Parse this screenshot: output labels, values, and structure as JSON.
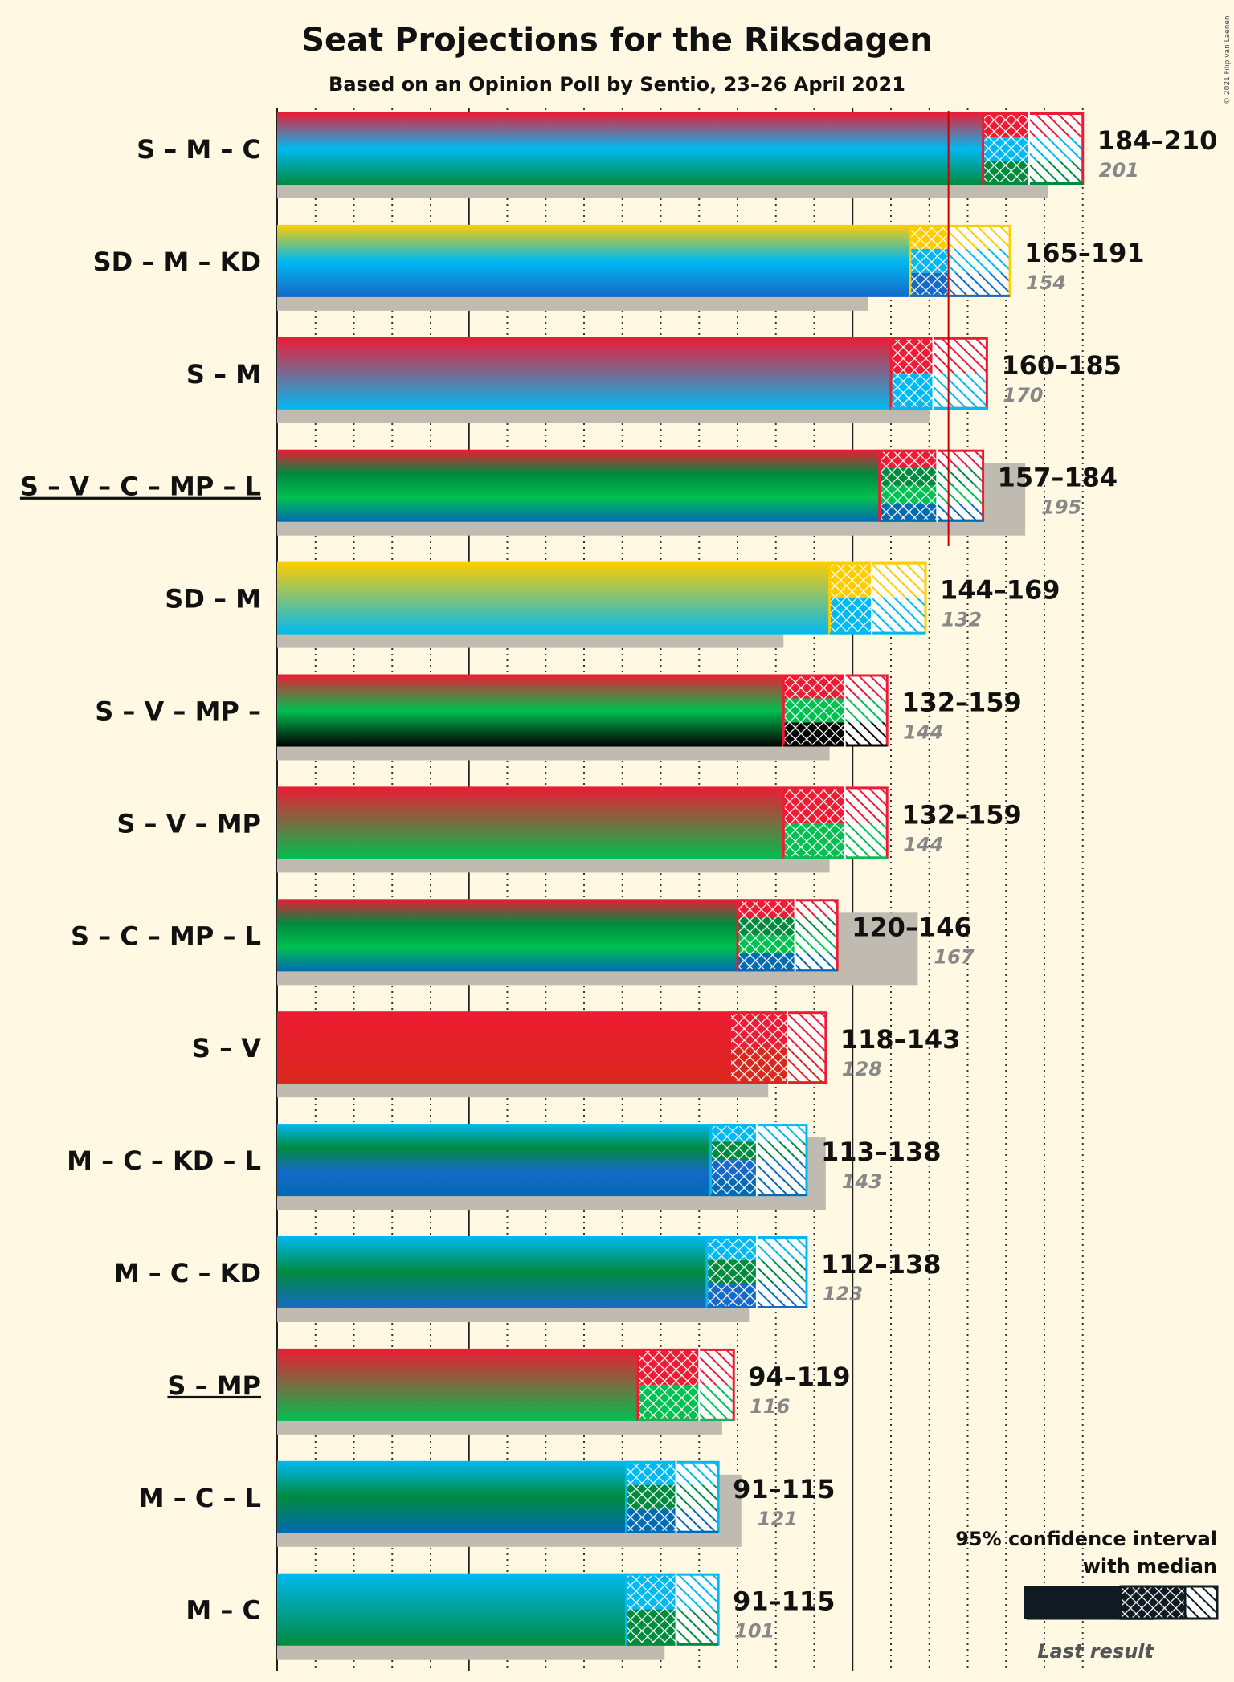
{
  "title": "Seat Projections for the Riksdagen",
  "subtitle": "Based on an Opinion Poll by Sentio, 23–26 April 2021",
  "copyright": "© 2021 Filip van Laenen",
  "majority": 175,
  "legend": {
    "line1": "95% confidence interval",
    "line2": "with median",
    "last_result": "Last result"
  },
  "colors": {
    "S": "#ED1B34",
    "M": "#00B9F2",
    "C": "#008A3E",
    "SD": "#FFCC00",
    "KD": "#1569C7",
    "V": "#DA291C",
    "MP": "#00C050",
    "L": "#006AB3",
    "black": "#000000",
    "background": "#FFF8E2",
    "last_bar": "#BFBBB0",
    "majority_line": "#CC0000"
  },
  "chart_data": {
    "type": "bar",
    "title": "Seat Projections for the Riksdagen",
    "xlim": [
      0,
      210
    ],
    "gridlines": "every 10 seats (dotted), 50 and 150 solid",
    "coalitions": [
      {
        "label": "S – M – C",
        "parties": [
          "S",
          "M",
          "C"
        ],
        "low": 184,
        "median": 196,
        "high": 210,
        "last": 201,
        "range": "184–210",
        "last_text": "201",
        "underline": false
      },
      {
        "label": "SD – M – KD",
        "parties": [
          "SD",
          "M",
          "KD"
        ],
        "low": 165,
        "median": 175,
        "high": 191,
        "last": 154,
        "range": "165–191",
        "last_text": "154",
        "underline": false
      },
      {
        "label": "S – M",
        "parties": [
          "S",
          "M"
        ],
        "low": 160,
        "median": 171,
        "high": 185,
        "last": 170,
        "range": "160–185",
        "last_text": "170",
        "underline": false
      },
      {
        "label": "S – V – C – MP – L",
        "parties": [
          "S",
          "C",
          "MP",
          "L"
        ],
        "low": 157,
        "median": 172,
        "high": 184,
        "last": 195,
        "range": "157–184",
        "last_text": "195",
        "underline": true
      },
      {
        "label": "SD – M",
        "parties": [
          "SD",
          "M"
        ],
        "low": 144,
        "median": 155,
        "high": 169,
        "last": 132,
        "range": "144–169",
        "last_text": "132",
        "underline": false
      },
      {
        "label": "S – V – MP –",
        "parties": [
          "S",
          "MP",
          "black"
        ],
        "low": 132,
        "median": 148,
        "high": 159,
        "last": 144,
        "range": "132–159",
        "last_text": "144",
        "underline": false
      },
      {
        "label": "S – V – MP",
        "parties": [
          "S",
          "MP"
        ],
        "low": 132,
        "median": 148,
        "high": 159,
        "last": 144,
        "range": "132–159",
        "last_text": "144",
        "underline": false
      },
      {
        "label": "S – C – MP – L",
        "parties": [
          "S",
          "C",
          "MP",
          "L"
        ],
        "low": 120,
        "median": 135,
        "high": 146,
        "last": 167,
        "range": "120–146",
        "last_text": "167",
        "underline": false
      },
      {
        "label": "S – V",
        "parties": [
          "S",
          "V"
        ],
        "low": 118,
        "median": 133,
        "high": 143,
        "last": 128,
        "range": "118–143",
        "last_text": "128",
        "underline": false
      },
      {
        "label": "M – C – KD – L",
        "parties": [
          "M",
          "C",
          "KD",
          "L"
        ],
        "low": 113,
        "median": 125,
        "high": 138,
        "last": 143,
        "range": "113–138",
        "last_text": "143",
        "underline": false
      },
      {
        "label": "M – C – KD",
        "parties": [
          "M",
          "C",
          "KD"
        ],
        "low": 112,
        "median": 125,
        "high": 138,
        "last": 123,
        "range": "112–138",
        "last_text": "123",
        "underline": false
      },
      {
        "label": "S – MP",
        "parties": [
          "S",
          "MP"
        ],
        "low": 94,
        "median": 110,
        "high": 119,
        "last": 116,
        "range": "94–119",
        "last_text": "116",
        "underline": true
      },
      {
        "label": "M – C – L",
        "parties": [
          "M",
          "C",
          "L"
        ],
        "low": 91,
        "median": 104,
        "high": 115,
        "last": 121,
        "range": "91–115",
        "last_text": "121",
        "underline": false
      },
      {
        "label": "M – C",
        "parties": [
          "M",
          "C"
        ],
        "low": 91,
        "median": 104,
        "high": 115,
        "last": 101,
        "range": "91–115",
        "last_text": "101",
        "underline": false
      }
    ]
  }
}
